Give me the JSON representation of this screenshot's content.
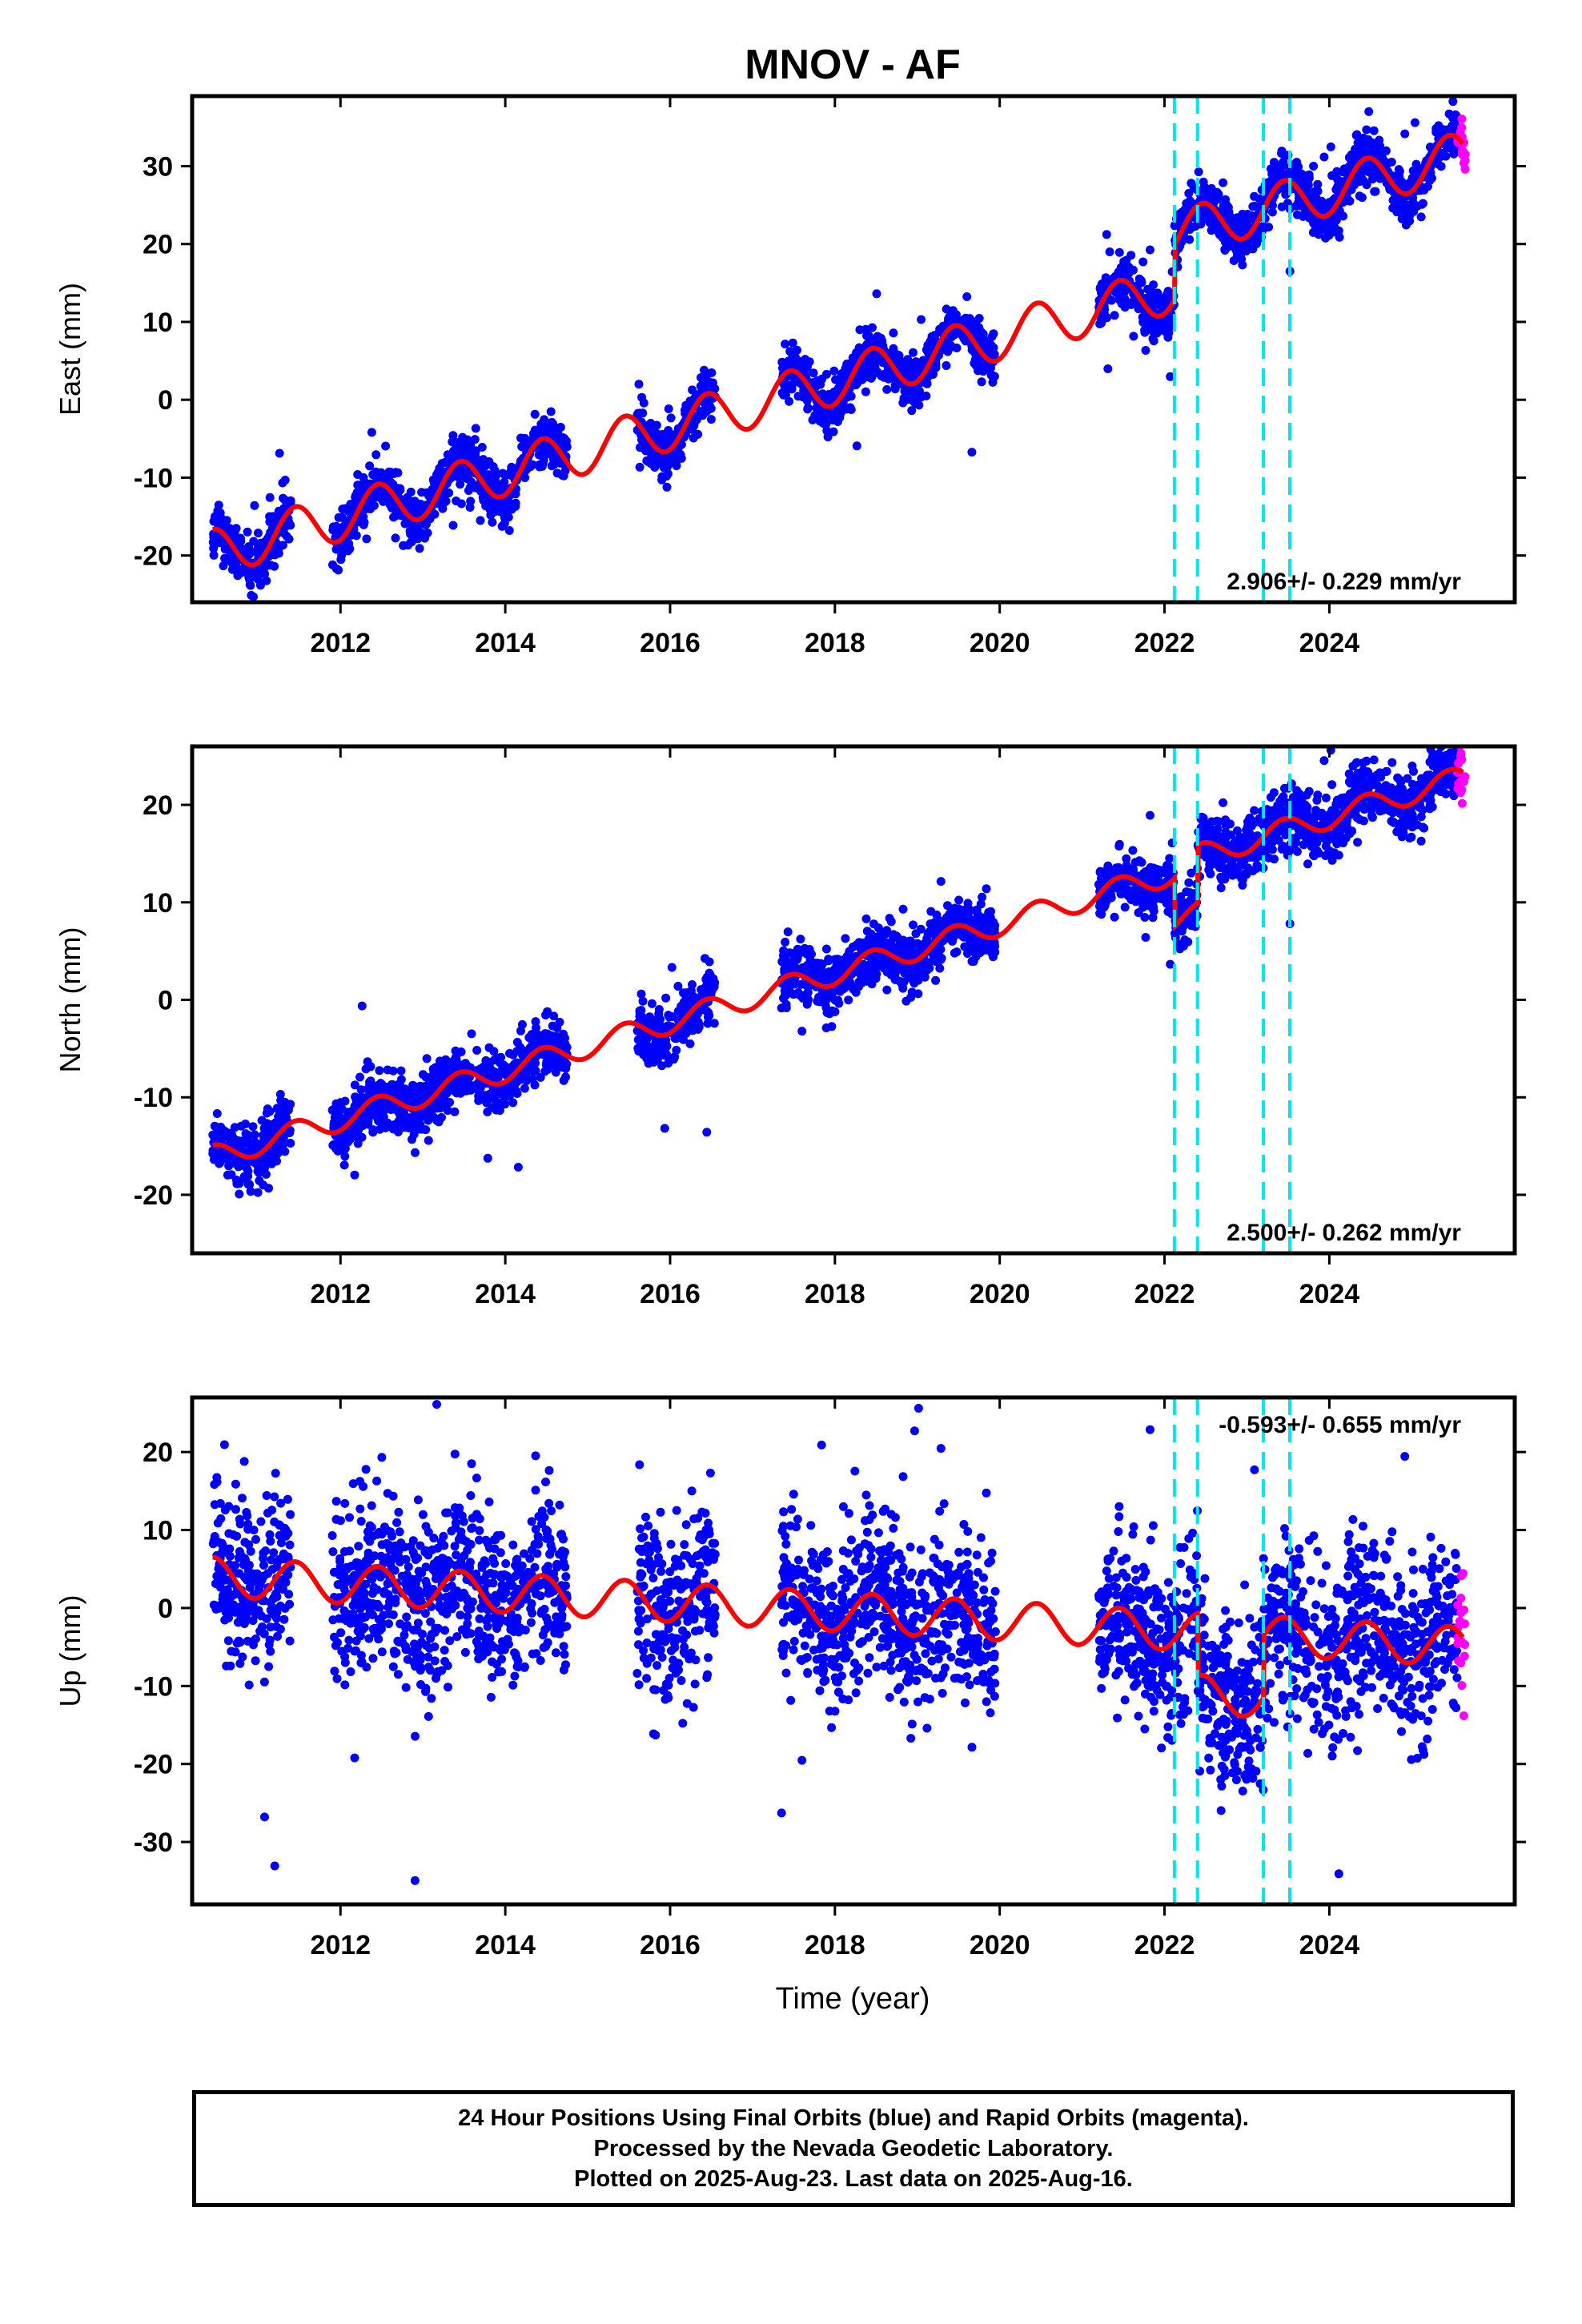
{
  "title": "MNOV - AF",
  "colors": {
    "final": "#0000ff",
    "rapid": "#ff00ff",
    "model": "#ff0000",
    "offset": "#00e5ee"
  },
  "offsets": [
    2022.12,
    2022.4,
    2023.2,
    2023.52
  ],
  "xlim": [
    2010.2,
    2026.25
  ],
  "xticks": [
    "2012",
    "2014",
    "2016",
    "2018",
    "2020",
    "2022",
    "2024"
  ],
  "xlabel": "Time (year)",
  "chart_data": [
    {
      "type": "scatter",
      "component": "east",
      "ylabel": "East (mm)",
      "rate_label": "2.906+/- 0.229 mm/yr",
      "ylim": [
        -26,
        39
      ],
      "yticks": [
        "-20",
        "-10",
        "0",
        "10",
        "20",
        "30"
      ],
      "trend": {
        "rate": 2.906,
        "intercept": -19.5,
        "t0": 2010.5
      },
      "seasonal_amp": 3.0,
      "steps": [
        {
          "t": 2022.12,
          "dy": 7
        }
      ],
      "noise": 1.6
    },
    {
      "type": "scatter",
      "component": "north",
      "ylabel": "North (mm)",
      "rate_label": "2.500+/- 0.262 mm/yr",
      "ylim": [
        -26,
        26
      ],
      "yticks": [
        "-20",
        "-10",
        "0",
        "10",
        "20"
      ],
      "trend": {
        "rate": 2.5,
        "intercept": -16,
        "t0": 2010.5
      },
      "seasonal_amp": 1.2,
      "steps": [
        {
          "t": 2022.12,
          "dy": -5
        },
        {
          "t": 2022.4,
          "dy": 6
        }
      ],
      "noise": 1.5
    },
    {
      "type": "scatter",
      "component": "up",
      "ylabel": "Up (mm)",
      "rate_label": "-0.593+/- 0.655 mm/yr",
      "ylim": [
        -38,
        27
      ],
      "yticks": [
        "-30",
        "-20",
        "-10",
        "0",
        "10",
        "20"
      ],
      "trend": {
        "rate": -0.593,
        "intercept": 4,
        "t0": 2010.5
      },
      "seasonal_amp": 2.5,
      "steps": [
        {
          "t": 2022.4,
          "dy": -8
        },
        {
          "t": 2023.2,
          "dy": 8
        }
      ],
      "noise": 5.5
    }
  ],
  "data_spans": [
    [
      2010.45,
      2011.4
    ],
    [
      2011.9,
      2014.75
    ],
    [
      2015.6,
      2016.55
    ],
    [
      2017.35,
      2019.95
    ],
    [
      2021.2,
      2025.6
    ]
  ],
  "rapid_span": [
    2025.55,
    2025.65
  ],
  "footer": {
    "line1": "24 Hour Positions Using Final Orbits (blue) and Rapid Orbits (magenta).",
    "line2": "Processed by the Nevada Geodetic Laboratory.",
    "line3": "Plotted on 2025-Aug-23. Last data on 2025-Aug-16."
  }
}
